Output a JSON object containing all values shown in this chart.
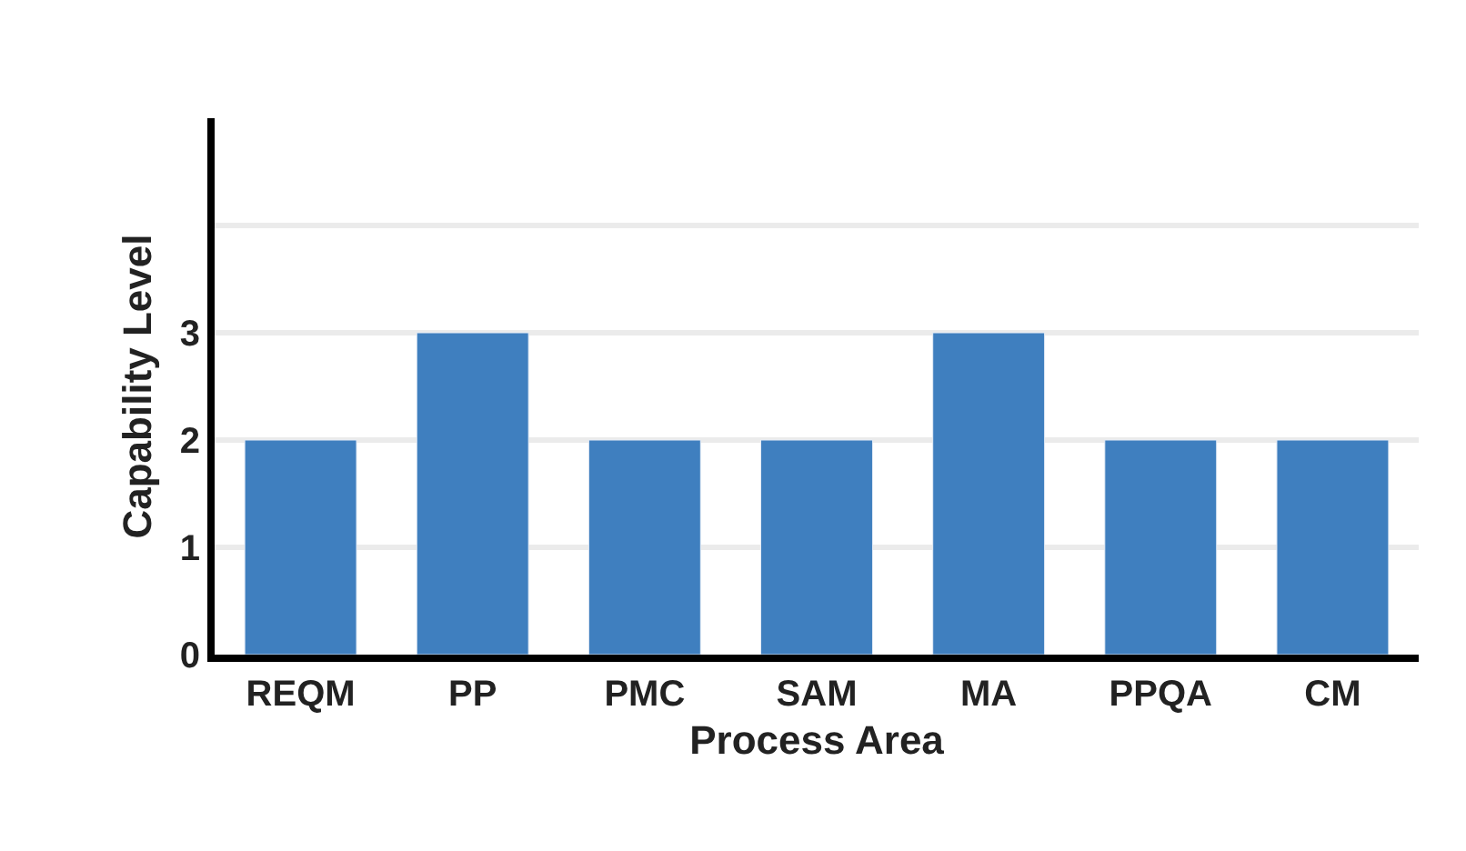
{
  "chart_data": {
    "type": "bar",
    "xlabel": "Process Area",
    "ylabel": "Capability Level",
    "categories": [
      "REQM",
      "PP",
      "PMC",
      "SAM",
      "MA",
      "PPQA",
      "CM"
    ],
    "values": [
      2,
      3,
      2,
      2,
      3,
      2,
      2
    ],
    "color": "#3f7fbf",
    "ylim": [
      0,
      5
    ],
    "yticks": [
      0,
      1,
      2,
      3,
      {
        "value": 4,
        "label": null
      }
    ],
    "grid": "y",
    "legend": false
  }
}
